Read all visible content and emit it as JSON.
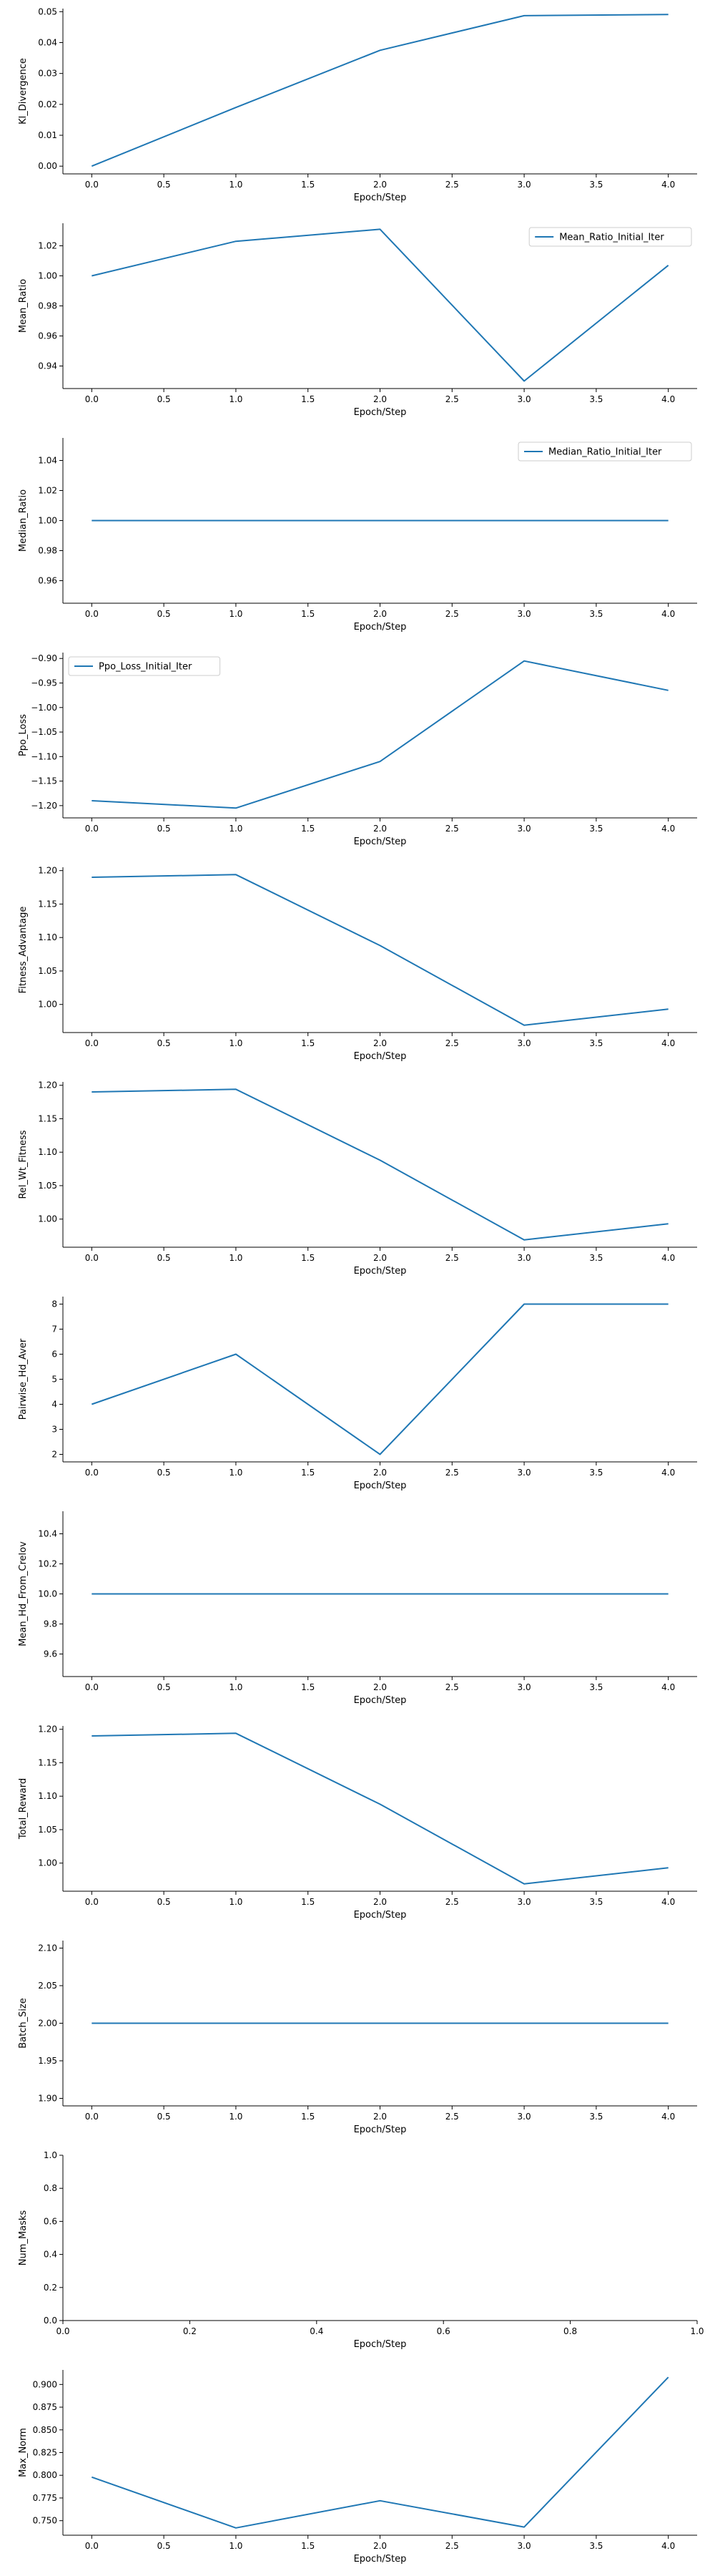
{
  "style": {
    "line_color": "#1f77b4",
    "axis_color": "#000000",
    "legend_border": "#cccccc"
  },
  "chart_data": [
    {
      "type": "line",
      "ylabel": "Kl_Divergence",
      "xlabel": "Epoch/Step",
      "x": [
        0,
        1,
        2,
        3,
        4
      ],
      "values": [
        0.0,
        0.019,
        0.0375,
        0.0487,
        0.0491
      ],
      "xlim": [
        -0.2,
        4.2
      ],
      "ylim": [
        -0.0025,
        0.051
      ],
      "xticks": [
        0.0,
        0.5,
        1.0,
        1.5,
        2.0,
        2.5,
        3.0,
        3.5,
        4.0
      ],
      "xtick_labels": [
        "0.0",
        "0.5",
        "1.0",
        "1.5",
        "2.0",
        "2.5",
        "3.0",
        "3.5",
        "4.0"
      ],
      "yticks": [
        0.0,
        0.01,
        0.02,
        0.03,
        0.04,
        0.05
      ],
      "ytick_labels": [
        "0.00",
        "0.01",
        "0.02",
        "0.03",
        "0.04",
        "0.05"
      ],
      "legend": null
    },
    {
      "type": "line",
      "ylabel": "Mean_Ratio",
      "xlabel": "Epoch/Step",
      "x": [
        0,
        1,
        2,
        3,
        4
      ],
      "values": [
        1.0,
        1.023,
        1.031,
        0.93,
        1.007
      ],
      "xlim": [
        -0.2,
        4.2
      ],
      "ylim": [
        0.925,
        1.035
      ],
      "xticks": [
        0.0,
        0.5,
        1.0,
        1.5,
        2.0,
        2.5,
        3.0,
        3.5,
        4.0
      ],
      "xtick_labels": [
        "0.0",
        "0.5",
        "1.0",
        "1.5",
        "2.0",
        "2.5",
        "3.0",
        "3.5",
        "4.0"
      ],
      "yticks": [
        0.94,
        0.96,
        0.98,
        1.0,
        1.02
      ],
      "ytick_labels": [
        "0.94",
        "0.96",
        "0.98",
        "1.00",
        "1.02"
      ],
      "legend": {
        "label": "Mean_Ratio_Initial_Iter",
        "placement": "top-right"
      }
    },
    {
      "type": "line",
      "ylabel": "Median_Ratio",
      "xlabel": "Epoch/Step",
      "x": [
        0,
        1,
        2,
        3,
        4
      ],
      "values": [
        1.0,
        1.0,
        1.0,
        1.0,
        1.0
      ],
      "xlim": [
        -0.2,
        4.2
      ],
      "ylim": [
        0.945,
        1.055
      ],
      "xticks": [
        0.0,
        0.5,
        1.0,
        1.5,
        2.0,
        2.5,
        3.0,
        3.5,
        4.0
      ],
      "xtick_labels": [
        "0.0",
        "0.5",
        "1.0",
        "1.5",
        "2.0",
        "2.5",
        "3.0",
        "3.5",
        "4.0"
      ],
      "yticks": [
        0.96,
        0.98,
        1.0,
        1.02,
        1.04
      ],
      "ytick_labels": [
        "0.96",
        "0.98",
        "1.00",
        "1.02",
        "1.04"
      ],
      "legend": {
        "label": "Median_Ratio_Initial_Iter",
        "placement": "top-right"
      }
    },
    {
      "type": "line",
      "ylabel": "Ppo_Loss",
      "xlabel": "Epoch/Step",
      "x": [
        0,
        1,
        2,
        3,
        4
      ],
      "values": [
        -1.19,
        -1.205,
        -1.11,
        -0.905,
        -0.965
      ],
      "xlim": [
        -0.2,
        4.2
      ],
      "ylim": [
        -1.225,
        -0.888
      ],
      "xticks": [
        0.0,
        0.5,
        1.0,
        1.5,
        2.0,
        2.5,
        3.0,
        3.5,
        4.0
      ],
      "xtick_labels": [
        "0.0",
        "0.5",
        "1.0",
        "1.5",
        "2.0",
        "2.5",
        "3.0",
        "3.5",
        "4.0"
      ],
      "yticks": [
        -1.2,
        -1.15,
        -1.1,
        -1.05,
        -1.0,
        -0.95,
        -0.9
      ],
      "ytick_labels": [
        "−1.20",
        "−1.15",
        "−1.10",
        "−1.05",
        "−1.00",
        "−0.95",
        "−0.90"
      ],
      "legend": {
        "label": "Ppo_Loss_Initial_Iter",
        "placement": "top-left"
      }
    },
    {
      "type": "line",
      "ylabel": "Fitness_Advantage",
      "xlabel": "Epoch/Step",
      "x": [
        0,
        1,
        2,
        3,
        4
      ],
      "values": [
        1.19,
        1.194,
        1.088,
        0.969,
        0.993
      ],
      "xlim": [
        -0.2,
        4.2
      ],
      "ylim": [
        0.958,
        1.205
      ],
      "xticks": [
        0.0,
        0.5,
        1.0,
        1.5,
        2.0,
        2.5,
        3.0,
        3.5,
        4.0
      ],
      "xtick_labels": [
        "0.0",
        "0.5",
        "1.0",
        "1.5",
        "2.0",
        "2.5",
        "3.0",
        "3.5",
        "4.0"
      ],
      "yticks": [
        1.0,
        1.05,
        1.1,
        1.15,
        1.2
      ],
      "ytick_labels": [
        "1.00",
        "1.05",
        "1.10",
        "1.15",
        "1.20"
      ],
      "legend": null
    },
    {
      "type": "line",
      "ylabel": "Rel_Wt_Fitness",
      "xlabel": "Epoch/Step",
      "x": [
        0,
        1,
        2,
        3,
        4
      ],
      "values": [
        1.19,
        1.194,
        1.088,
        0.969,
        0.993
      ],
      "xlim": [
        -0.2,
        4.2
      ],
      "ylim": [
        0.958,
        1.205
      ],
      "xticks": [
        0.0,
        0.5,
        1.0,
        1.5,
        2.0,
        2.5,
        3.0,
        3.5,
        4.0
      ],
      "xtick_labels": [
        "0.0",
        "0.5",
        "1.0",
        "1.5",
        "2.0",
        "2.5",
        "3.0",
        "3.5",
        "4.0"
      ],
      "yticks": [
        1.0,
        1.05,
        1.1,
        1.15,
        1.2
      ],
      "ytick_labels": [
        "1.00",
        "1.05",
        "1.10",
        "1.15",
        "1.20"
      ],
      "legend": null
    },
    {
      "type": "line",
      "ylabel": "Pairwise_Hd_Aver",
      "xlabel": "Epoch/Step",
      "x": [
        0,
        1,
        2,
        3,
        4
      ],
      "values": [
        4,
        6,
        2,
        8,
        8
      ],
      "xlim": [
        -0.2,
        4.2
      ],
      "ylim": [
        1.7,
        8.3
      ],
      "xticks": [
        0.0,
        0.5,
        1.0,
        1.5,
        2.0,
        2.5,
        3.0,
        3.5,
        4.0
      ],
      "xtick_labels": [
        "0.0",
        "0.5",
        "1.0",
        "1.5",
        "2.0",
        "2.5",
        "3.0",
        "3.5",
        "4.0"
      ],
      "yticks": [
        2,
        3,
        4,
        5,
        6,
        7,
        8
      ],
      "ytick_labels": [
        "2",
        "3",
        "4",
        "5",
        "6",
        "7",
        "8"
      ],
      "legend": null
    },
    {
      "type": "line",
      "ylabel": "Mean_Hd_From_Crelov",
      "xlabel": "Epoch/Step",
      "x": [
        0,
        1,
        2,
        3,
        4
      ],
      "values": [
        10,
        10,
        10,
        10,
        10
      ],
      "xlim": [
        -0.2,
        4.2
      ],
      "ylim": [
        9.45,
        10.55
      ],
      "xticks": [
        0.0,
        0.5,
        1.0,
        1.5,
        2.0,
        2.5,
        3.0,
        3.5,
        4.0
      ],
      "xtick_labels": [
        "0.0",
        "0.5",
        "1.0",
        "1.5",
        "2.0",
        "2.5",
        "3.0",
        "3.5",
        "4.0"
      ],
      "yticks": [
        9.6,
        9.8,
        10.0,
        10.2,
        10.4
      ],
      "ytick_labels": [
        "9.6",
        "9.8",
        "10.0",
        "10.2",
        "10.4"
      ],
      "legend": null
    },
    {
      "type": "line",
      "ylabel": "Total_Reward",
      "xlabel": "Epoch/Step",
      "x": [
        0,
        1,
        2,
        3,
        4
      ],
      "values": [
        1.19,
        1.194,
        1.088,
        0.969,
        0.993
      ],
      "xlim": [
        -0.2,
        4.2
      ],
      "ylim": [
        0.958,
        1.205
      ],
      "xticks": [
        0.0,
        0.5,
        1.0,
        1.5,
        2.0,
        2.5,
        3.0,
        3.5,
        4.0
      ],
      "xtick_labels": [
        "0.0",
        "0.5",
        "1.0",
        "1.5",
        "2.0",
        "2.5",
        "3.0",
        "3.5",
        "4.0"
      ],
      "yticks": [
        1.0,
        1.05,
        1.1,
        1.15,
        1.2
      ],
      "ytick_labels": [
        "1.00",
        "1.05",
        "1.10",
        "1.15",
        "1.20"
      ],
      "legend": null
    },
    {
      "type": "line",
      "ylabel": "Batch_Size",
      "xlabel": "Epoch/Step",
      "x": [
        0,
        1,
        2,
        3,
        4
      ],
      "values": [
        2,
        2,
        2,
        2,
        2
      ],
      "xlim": [
        -0.2,
        4.2
      ],
      "ylim": [
        1.89,
        2.11
      ],
      "xticks": [
        0.0,
        0.5,
        1.0,
        1.5,
        2.0,
        2.5,
        3.0,
        3.5,
        4.0
      ],
      "xtick_labels": [
        "0.0",
        "0.5",
        "1.0",
        "1.5",
        "2.0",
        "2.5",
        "3.0",
        "3.5",
        "4.0"
      ],
      "yticks": [
        1.9,
        1.95,
        2.0,
        2.05,
        2.1
      ],
      "ytick_labels": [
        "1.90",
        "1.95",
        "2.00",
        "2.05",
        "2.10"
      ],
      "legend": null
    },
    {
      "type": "line",
      "ylabel": "Num_Masks",
      "xlabel": "Epoch/Step",
      "x": [],
      "values": [],
      "xlim": [
        0.0,
        1.0
      ],
      "ylim": [
        0.0,
        1.0
      ],
      "xticks": [
        0.0,
        0.2,
        0.4,
        0.6,
        0.8,
        1.0
      ],
      "xtick_labels": [
        "0.0",
        "0.2",
        "0.4",
        "0.6",
        "0.8",
        "1.0"
      ],
      "yticks": [
        0.0,
        0.2,
        0.4,
        0.6,
        0.8,
        1.0
      ],
      "ytick_labels": [
        "0.0",
        "0.2",
        "0.4",
        "0.6",
        "0.8",
        "1.0"
      ],
      "legend": null
    },
    {
      "type": "line",
      "ylabel": "Max_Norm",
      "xlabel": "Epoch/Step",
      "x": [
        0,
        1,
        2,
        3,
        4
      ],
      "values": [
        0.798,
        0.742,
        0.772,
        0.743,
        0.908
      ],
      "xlim": [
        -0.2,
        4.2
      ],
      "ylim": [
        0.734,
        0.916
      ],
      "xticks": [
        0.0,
        0.5,
        1.0,
        1.5,
        2.0,
        2.5,
        3.0,
        3.5,
        4.0
      ],
      "xtick_labels": [
        "0.0",
        "0.5",
        "1.0",
        "1.5",
        "2.0",
        "2.5",
        "3.0",
        "3.5",
        "4.0"
      ],
      "yticks": [
        0.75,
        0.775,
        0.8,
        0.825,
        0.85,
        0.875,
        0.9
      ],
      "ytick_labels": [
        "0.750",
        "0.775",
        "0.800",
        "0.825",
        "0.850",
        "0.875",
        "0.900"
      ],
      "legend": null
    }
  ]
}
